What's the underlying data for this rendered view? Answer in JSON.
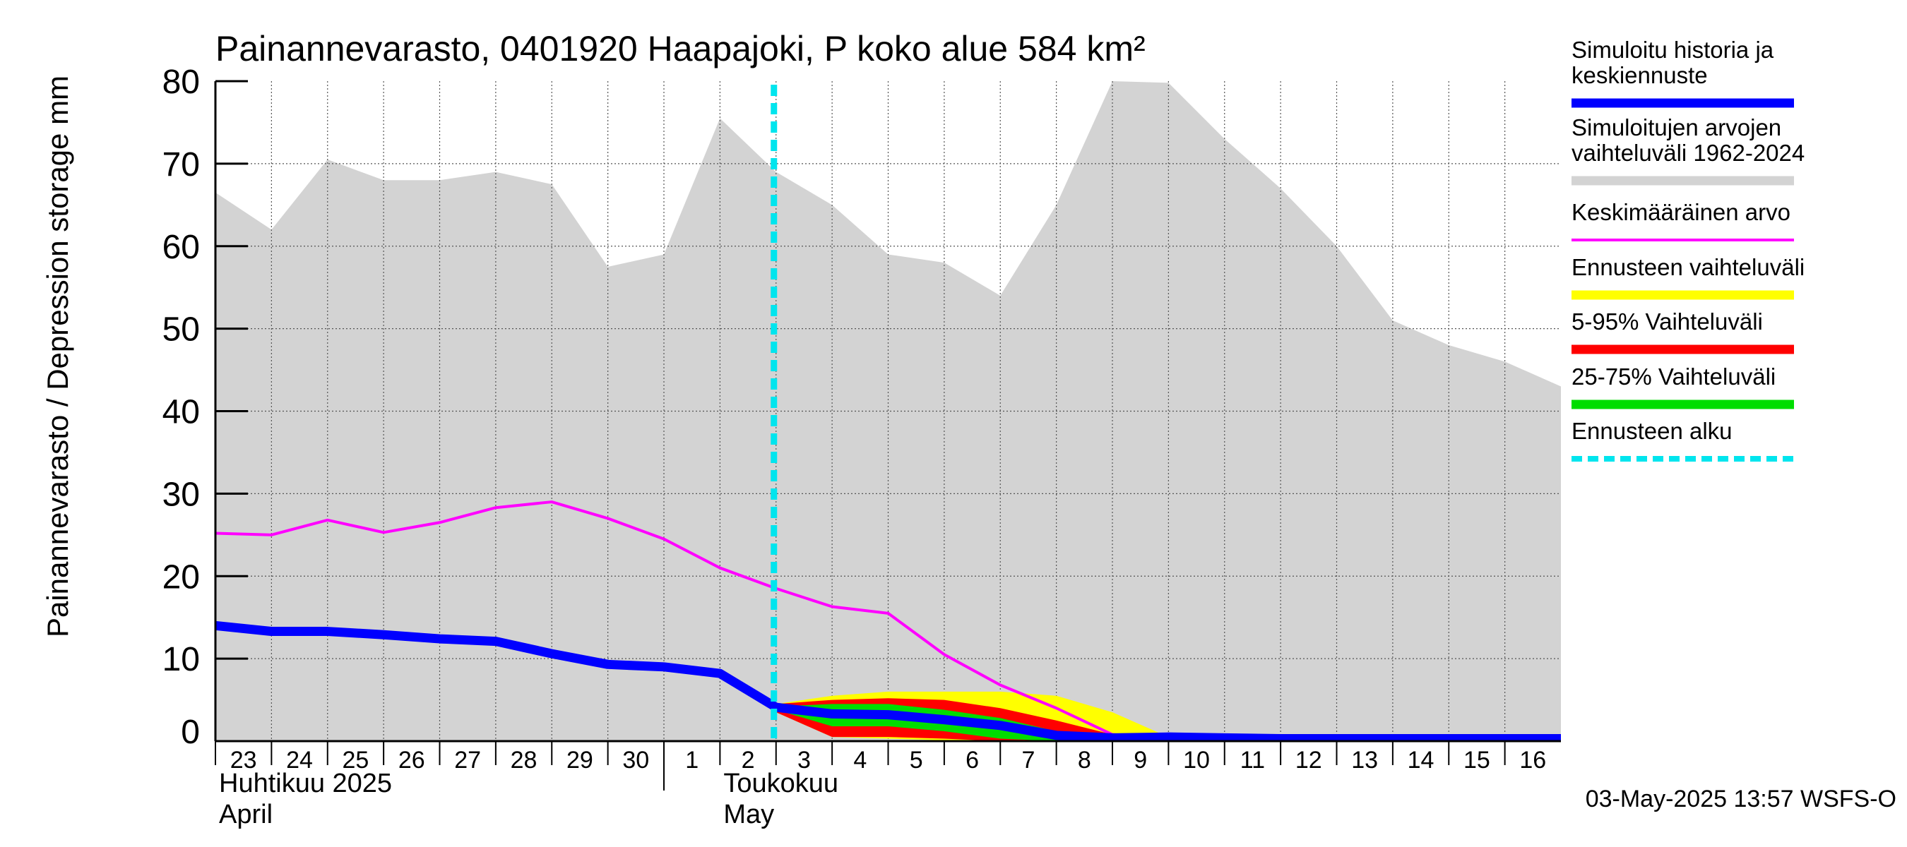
{
  "chart_data": {
    "type": "area",
    "title": "Painannevarasto, 0401920 Haapajoki, P koko alue 584 km²",
    "ylabel": "Painannevarasto / Depression storage    mm",
    "ylim": [
      0,
      80
    ],
    "yticks": [
      "0",
      "10",
      "20",
      "30",
      "40",
      "50",
      "60",
      "70",
      "80"
    ],
    "grid": true,
    "legend_position": "right",
    "x_start": "2025-04-23",
    "x_end": "2025-05-16",
    "x_tick_labels": [
      "23",
      "24",
      "25",
      "26",
      "27",
      "28",
      "29",
      "30",
      "1",
      "2",
      "3",
      "4",
      "5",
      "6",
      "7",
      "8",
      "9",
      "10",
      "11",
      "12",
      "13",
      "14",
      "15",
      "16"
    ],
    "month_labels": [
      {
        "line1": "Huhtikuu  2025",
        "line2": "April"
      },
      {
        "line1": "Toukokuu",
        "line2": "May"
      }
    ],
    "forecast_start": "2025-05-03",
    "series": [
      {
        "name": "Simuloitujen arvojen vaihteluväli 1962-2024",
        "color": "#d3d3d3",
        "x": [
          "2025-04-23",
          "2025-04-24",
          "2025-04-25",
          "2025-04-26",
          "2025-04-27",
          "2025-04-28",
          "2025-04-29",
          "2025-04-30",
          "2025-05-01",
          "2025-05-02",
          "2025-05-03",
          "2025-05-04",
          "2025-05-05",
          "2025-05-06",
          "2025-05-07",
          "2025-05-08",
          "2025-05-09",
          "2025-05-10",
          "2025-05-11",
          "2025-05-12",
          "2025-05-13",
          "2025-05-14",
          "2025-05-15",
          "2025-05-16",
          "2025-05-17"
        ],
        "upper": [
          66.5,
          62,
          70.5,
          68,
          68,
          69,
          67.5,
          57.5,
          59,
          75.5,
          69,
          65,
          59,
          58,
          54,
          65,
          80,
          79.8,
          73,
          67,
          60,
          51,
          48,
          46,
          43
        ],
        "lower": [
          0,
          0,
          0,
          0,
          0,
          0,
          0,
          0,
          0,
          0,
          0,
          0,
          0,
          0,
          0,
          0,
          0,
          0,
          0,
          0,
          0,
          0,
          0,
          0,
          0
        ]
      },
      {
        "name": "Ennusteen vaihteluväli",
        "color": "#ffff00",
        "x": [
          "2025-05-03",
          "2025-05-04",
          "2025-05-05",
          "2025-05-06",
          "2025-05-07",
          "2025-05-08",
          "2025-05-09",
          "2025-05-10"
        ],
        "upper": [
          4.5,
          5.5,
          6,
          6,
          6,
          5.5,
          3.5,
          0.5
        ],
        "lower": [
          3.5,
          0.5,
          0.3,
          0.1,
          0,
          0,
          0,
          0
        ]
      },
      {
        "name": "5-95% Vaihteluväli",
        "color": "#ff0000",
        "x": [
          "2025-05-03",
          "2025-05-04",
          "2025-05-05",
          "2025-05-06",
          "2025-05-07",
          "2025-05-08",
          "2025-05-09",
          "2025-05-10"
        ],
        "upper": [
          4.5,
          5,
          5.2,
          5,
          4,
          2.5,
          0.8,
          0.2
        ],
        "lower": [
          3.5,
          0.5,
          0.5,
          0.3,
          0,
          0,
          0,
          0
        ]
      },
      {
        "name": "25-75% Vaihteluväli",
        "color": "#00dd00",
        "x": [
          "2025-05-03",
          "2025-05-04",
          "2025-05-05",
          "2025-05-06",
          "2025-05-07",
          "2025-05-08",
          "2025-05-09",
          "2025-05-10"
        ],
        "upper": [
          4.2,
          4.5,
          4.5,
          3.8,
          2.8,
          1.2,
          0.3,
          0
        ],
        "lower": [
          3.8,
          1.8,
          1.8,
          1.2,
          0.3,
          0,
          0,
          0
        ]
      },
      {
        "name": "Keskimääräinen arvo",
        "color": "#ff00ff",
        "x": [
          "2025-04-23",
          "2025-04-24",
          "2025-04-25",
          "2025-04-26",
          "2025-04-27",
          "2025-04-28",
          "2025-04-29",
          "2025-04-30",
          "2025-05-01",
          "2025-05-02",
          "2025-05-03",
          "2025-05-04",
          "2025-05-05",
          "2025-05-06",
          "2025-05-07",
          "2025-05-08",
          "2025-05-09",
          "2025-05-10",
          "2025-05-11",
          "2025-05-12",
          "2025-05-13",
          "2025-05-14",
          "2025-05-15",
          "2025-05-16",
          "2025-05-17"
        ],
        "values": [
          25.2,
          25.0,
          26.8,
          25.3,
          26.5,
          28.3,
          29.0,
          27.0,
          24.5,
          21.0,
          18.5,
          16.3,
          15.5,
          10.5,
          6.8,
          4.0,
          0.8,
          0.3,
          0.3,
          0.3,
          0.3,
          0.3,
          0.3,
          0.3,
          0.3
        ]
      },
      {
        "name": "Simuloitu historia ja keskiennuste",
        "color": "#0000ff",
        "x": [
          "2025-04-23",
          "2025-04-24",
          "2025-04-25",
          "2025-04-26",
          "2025-04-27",
          "2025-04-28",
          "2025-04-29",
          "2025-04-30",
          "2025-05-01",
          "2025-05-02",
          "2025-05-03",
          "2025-05-04",
          "2025-05-05",
          "2025-05-06",
          "2025-05-07",
          "2025-05-08",
          "2025-05-09",
          "2025-05-10",
          "2025-05-11",
          "2025-05-12",
          "2025-05-13",
          "2025-05-14",
          "2025-05-15",
          "2025-05-16",
          "2025-05-17"
        ],
        "values": [
          14.0,
          13.3,
          13.3,
          12.9,
          12.4,
          12.1,
          10.6,
          9.3,
          9.0,
          8.2,
          4.1,
          3.3,
          3.2,
          2.6,
          1.9,
          0.7,
          0.4,
          0.5,
          0.4,
          0.3,
          0.3,
          0.3,
          0.3,
          0.3,
          0.3
        ]
      }
    ]
  },
  "legend": [
    {
      "lines": [
        "Simuloitu historia ja",
        "keskiennuste"
      ],
      "color": "#0000ff",
      "style": "solid"
    },
    {
      "lines": [
        "Simuloitujen arvojen",
        "vaihteluväli 1962-2024"
      ],
      "color": "#d3d3d3",
      "style": "solid"
    },
    {
      "lines": [
        "Keskimääräinen arvo"
      ],
      "color": "#ff00ff",
      "style": "thin"
    },
    {
      "lines": [
        "Ennusteen vaihteluväli"
      ],
      "color": "#ffff00",
      "style": "solid"
    },
    {
      "lines": [
        "5-95% Vaihteluväli"
      ],
      "color": "#ff0000",
      "style": "solid"
    },
    {
      "lines": [
        "25-75% Vaihteluväli"
      ],
      "color": "#00dd00",
      "style": "solid"
    },
    {
      "lines": [
        "Ennusteen alku"
      ],
      "color": "#00e5ee",
      "style": "dashed"
    }
  ],
  "footer": "03-May-2025 13:57 WSFS-O"
}
